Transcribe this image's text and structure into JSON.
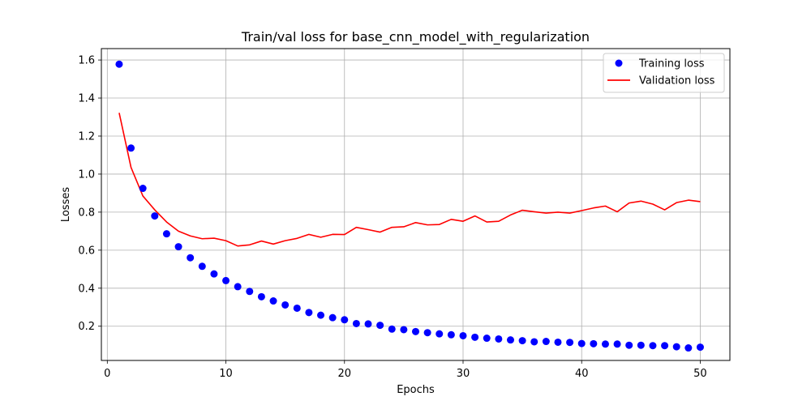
{
  "chart_data": {
    "type": "scatter+line",
    "title": "Train/val loss for base_cnn_model_with_regularization",
    "xlabel": "Epochs",
    "ylabel": "Losses",
    "xlim": [
      -0.5,
      52.5
    ],
    "ylim": [
      0.02,
      1.66
    ],
    "xticks": [
      0,
      10,
      20,
      30,
      40,
      50
    ],
    "yticks": [
      0.2,
      0.4,
      0.6,
      0.8,
      1.0,
      1.2,
      1.4,
      1.6
    ],
    "ytick_labels": [
      "0.2",
      "0.4",
      "0.6",
      "0.8",
      "1.0",
      "1.2",
      "1.4",
      "1.6"
    ],
    "grid": true,
    "legend_position": "top-right",
    "x": [
      1,
      2,
      3,
      4,
      5,
      6,
      7,
      8,
      9,
      10,
      11,
      12,
      13,
      14,
      15,
      16,
      17,
      18,
      19,
      20,
      21,
      22,
      23,
      24,
      25,
      26,
      27,
      28,
      29,
      30,
      31,
      32,
      33,
      34,
      35,
      36,
      37,
      38,
      39,
      40,
      41,
      42,
      43,
      44,
      45,
      46,
      47,
      48,
      49,
      50
    ],
    "series": [
      {
        "name": "Training loss",
        "kind": "scatter",
        "color": "#0000ff",
        "values": [
          1.578,
          1.137,
          0.925,
          0.78,
          0.686,
          0.618,
          0.56,
          0.515,
          0.475,
          0.44,
          0.408,
          0.383,
          0.355,
          0.333,
          0.312,
          0.295,
          0.272,
          0.258,
          0.245,
          0.234,
          0.214,
          0.212,
          0.205,
          0.185,
          0.182,
          0.172,
          0.166,
          0.16,
          0.155,
          0.15,
          0.142,
          0.137,
          0.133,
          0.128,
          0.124,
          0.118,
          0.12,
          0.116,
          0.115,
          0.109,
          0.108,
          0.106,
          0.106,
          0.1,
          0.1,
          0.098,
          0.098,
          0.092,
          0.086,
          0.09
        ]
      },
      {
        "name": "Validation loss",
        "kind": "line",
        "color": "#ff0000",
        "values": [
          1.322,
          1.035,
          0.885,
          0.812,
          0.748,
          0.7,
          0.675,
          0.66,
          0.663,
          0.65,
          0.622,
          0.628,
          0.648,
          0.632,
          0.65,
          0.662,
          0.683,
          0.668,
          0.683,
          0.682,
          0.72,
          0.708,
          0.695,
          0.72,
          0.723,
          0.745,
          0.733,
          0.735,
          0.762,
          0.752,
          0.78,
          0.748,
          0.752,
          0.785,
          0.81,
          0.802,
          0.795,
          0.8,
          0.795,
          0.808,
          0.822,
          0.832,
          0.802,
          0.848,
          0.858,
          0.842,
          0.812,
          0.85,
          0.863,
          0.855
        ]
      }
    ]
  }
}
